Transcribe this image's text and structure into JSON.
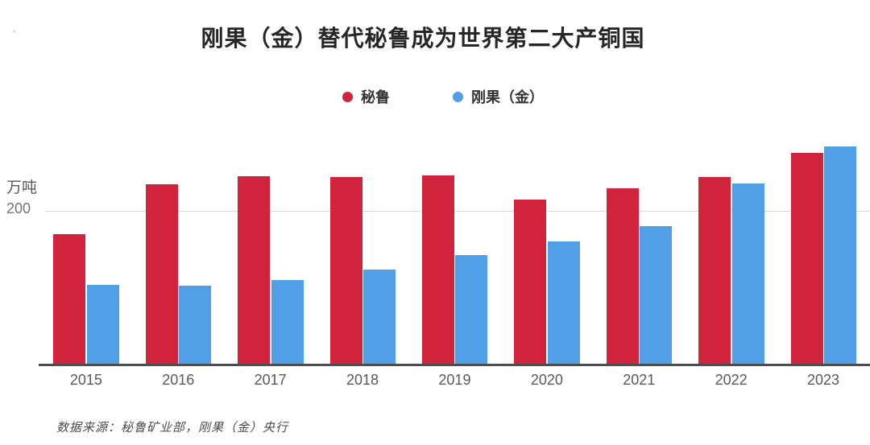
{
  "title": "刚果（金）替代秘鲁成为世界第二大产铜国",
  "legend": {
    "items": [
      {
        "label": "秘鲁",
        "color": "#d2233c"
      },
      {
        "label": "刚果（金）",
        "color": "#519fe6"
      }
    ]
  },
  "y_axis": {
    "unit_label": "万吨",
    "tick_label": "200"
  },
  "source_note": "数据来源：秘鲁矿业部，刚果（金）央行",
  "colors": {
    "peru_red": "#d2233c",
    "congo_blue": "#519fe6",
    "gridline": "#d6d6d6",
    "axis_line": "#4d4d4d",
    "title_text": "#262626",
    "axis_text": "#595959"
  },
  "chart_data": {
    "type": "bar",
    "title": "刚果（金）替代秘鲁成为世界第二大产铜国",
    "ylabel": "万吨",
    "xlabel": "",
    "categories": [
      "2015",
      "2016",
      "2017",
      "2018",
      "2019",
      "2020",
      "2021",
      "2022",
      "2023"
    ],
    "series": [
      {
        "name": "秘鲁",
        "color": "#d2233c",
        "values": [
          170,
          235,
          245,
          244,
          246,
          215,
          230,
          244,
          276
        ]
      },
      {
        "name": "刚果（金）",
        "color": "#519fe6",
        "values": [
          103,
          102,
          110,
          123,
          142,
          160,
          180,
          236,
          284
        ]
      }
    ],
    "ylim": [
      0,
      295
    ],
    "y_gridline_value": 200,
    "grid": "single-horizontal-line",
    "legend_position": "top-center",
    "units": "万吨 (10k tonnes)"
  }
}
